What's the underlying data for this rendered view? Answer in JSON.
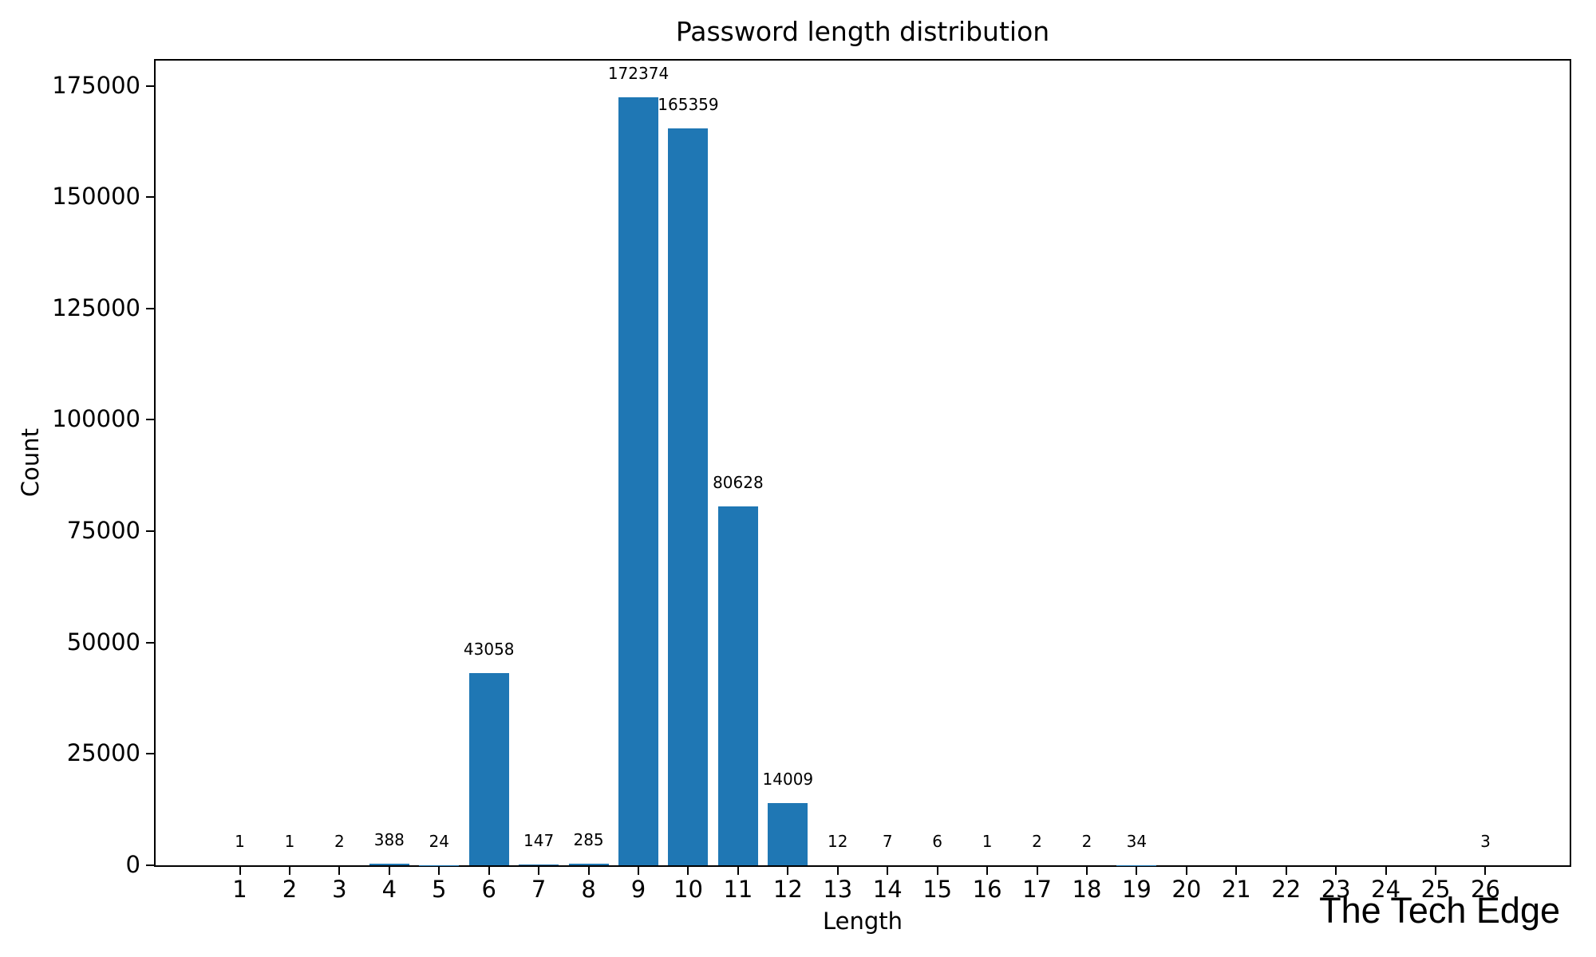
{
  "figure": {
    "title": "Password length distribution",
    "watermark": "The Tech Edge"
  },
  "chart_data": {
    "type": "bar",
    "title": "Password length distribution",
    "xlabel": "Length",
    "ylabel": "Count",
    "bar_color": "#1f77b4",
    "categories": [
      1,
      2,
      3,
      4,
      5,
      6,
      7,
      8,
      9,
      10,
      11,
      12,
      13,
      14,
      15,
      16,
      17,
      18,
      19,
      26
    ],
    "values": [
      1,
      1,
      2,
      388,
      24,
      43058,
      147,
      285,
      172374,
      165359,
      80628,
      14009,
      12,
      7,
      6,
      1,
      2,
      2,
      34,
      3
    ],
    "bar_labels": [
      "1",
      "1",
      "2",
      "388",
      "24",
      "43058",
      "147",
      "285",
      "172374",
      "165359",
      "80628",
      "14009",
      "12",
      "7",
      "6",
      "1",
      "2",
      "2",
      "34",
      "3"
    ],
    "x_ticks": [
      1,
      2,
      3,
      4,
      5,
      6,
      7,
      8,
      9,
      10,
      11,
      12,
      13,
      14,
      15,
      16,
      17,
      18,
      19,
      20,
      21,
      22,
      23,
      24,
      25,
      26
    ],
    "y_ticks": [
      0,
      25000,
      50000,
      75000,
      100000,
      125000,
      150000,
      175000
    ],
    "xlim": [
      -0.69,
      27.69
    ],
    "ylim": [
      0,
      181000
    ],
    "bar_width_ratio": 0.8,
    "grid": "off",
    "legend": "none"
  }
}
